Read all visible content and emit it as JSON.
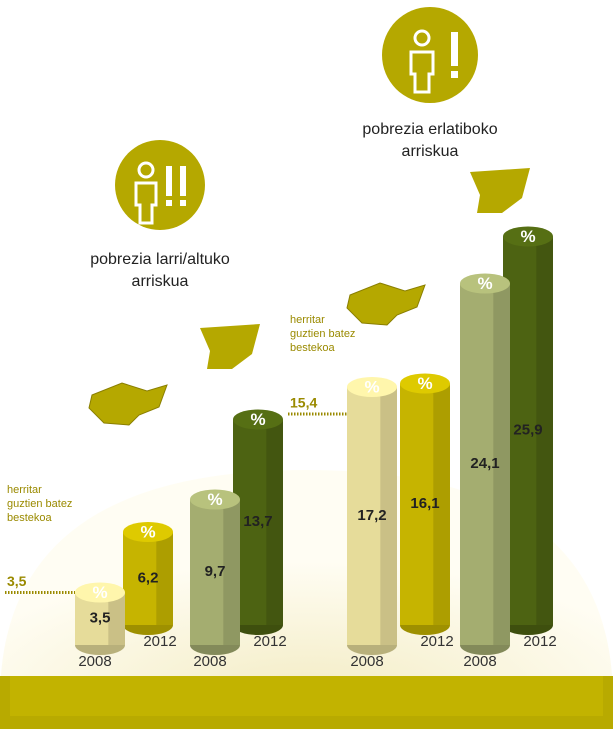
{
  "chart_data": {
    "type": "cylinder",
    "unit": "%",
    "groups": [
      {
        "title": [
          "pobrezia larri/altuko",
          "arriskua"
        ],
        "categories": [
          "2008",
          "2012",
          "2008",
          "2012"
        ],
        "values": [
          3.5,
          6.2,
          9.7,
          13.7
        ],
        "value_labels": [
          "3,5",
          "6,2",
          "9,7",
          "13,7"
        ],
        "colors": [
          "#e6dc9a",
          "#c6b400",
          "#a4ad70",
          "#4d6312"
        ],
        "reference": {
          "text": [
            "herritar",
            "guztien batez",
            "bestekoa"
          ],
          "value": 3.5,
          "label": "3,5"
        }
      },
      {
        "title": [
          "pobrezia erlatiboko",
          "arriskua"
        ],
        "categories": [
          "2008",
          "2012",
          "2008",
          "2012"
        ],
        "values": [
          17.2,
          16.1,
          24.1,
          25.9
        ],
        "value_labels": [
          "17,2",
          "16,1",
          "24,1",
          "25,9"
        ],
        "colors": [
          "#e6dc9a",
          "#c6b400",
          "#a4ad70",
          "#4d6312"
        ],
        "reference": {
          "text": [
            "herritar",
            "guztien batez",
            "bestekoa"
          ],
          "value": 15.4,
          "label": "15,4"
        }
      }
    ]
  }
}
